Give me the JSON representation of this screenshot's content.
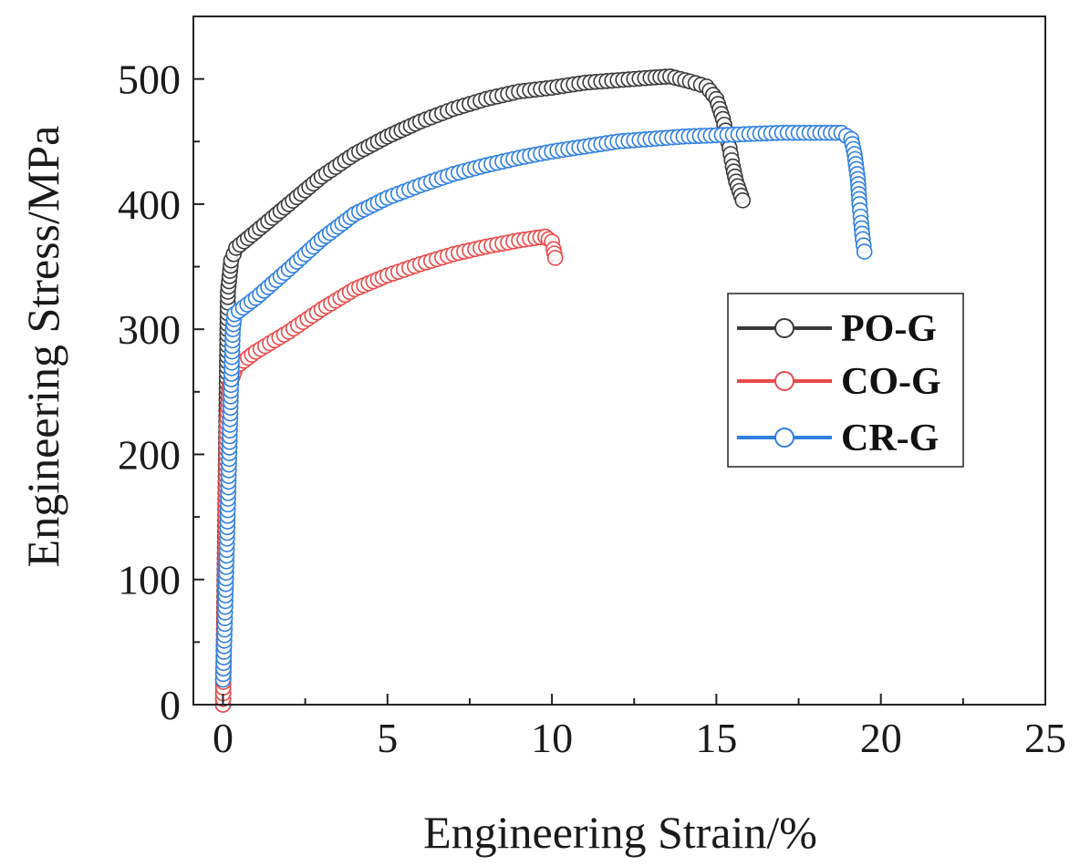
{
  "chart_data": {
    "type": "scatter",
    "xlabel": "Engineering Strain/%",
    "ylabel": "Engineering Stress/MPa",
    "xlim": [
      -0.9,
      25
    ],
    "ylim": [
      0,
      550
    ],
    "x_ticks": [
      0,
      5,
      10,
      15,
      20,
      25
    ],
    "x_tick_labels": [
      "0",
      "5",
      "10",
      "15",
      "20",
      "25"
    ],
    "y_ticks": [
      0,
      100,
      200,
      300,
      400,
      500
    ],
    "y_tick_labels": [
      "0",
      "100",
      "200",
      "300",
      "400",
      "500"
    ],
    "grid": false,
    "legend_position": "right",
    "series": [
      {
        "name": "PO-G",
        "color": "#3a3a3a",
        "points": [
          [
            0,
            0
          ],
          [
            0.03,
            60
          ],
          [
            0.06,
            130
          ],
          [
            0.09,
            200
          ],
          [
            0.12,
            270
          ],
          [
            0.15,
            330
          ],
          [
            0.25,
            355
          ],
          [
            0.4,
            365
          ],
          [
            1,
            378
          ],
          [
            2,
            400
          ],
          [
            3,
            422
          ],
          [
            4,
            440
          ],
          [
            5,
            454
          ],
          [
            6,
            466
          ],
          [
            7,
            476
          ],
          [
            8,
            484
          ],
          [
            9,
            490
          ],
          [
            10,
            493
          ],
          [
            11,
            497
          ],
          [
            12,
            499
          ],
          [
            13,
            501
          ],
          [
            13.6,
            502
          ],
          [
            14.2,
            498
          ],
          [
            14.7,
            494
          ],
          [
            15,
            484
          ],
          [
            15.2,
            468
          ],
          [
            15.4,
            445
          ],
          [
            15.5,
            430
          ],
          [
            15.6,
            418
          ],
          [
            15.8,
            403
          ]
        ]
      },
      {
        "name": "CO-G",
        "color": "#e84a4a",
        "points": [
          [
            0,
            0
          ],
          [
            0.03,
            50
          ],
          [
            0.06,
            110
          ],
          [
            0.09,
            170
          ],
          [
            0.12,
            225
          ],
          [
            0.2,
            255
          ],
          [
            0.4,
            270
          ],
          [
            1,
            282
          ],
          [
            2,
            298
          ],
          [
            3,
            316
          ],
          [
            4,
            332
          ],
          [
            5,
            343
          ],
          [
            6,
            352
          ],
          [
            7,
            360
          ],
          [
            8,
            366
          ],
          [
            9,
            371
          ],
          [
            9.5,
            373
          ],
          [
            9.8,
            374
          ],
          [
            10,
            370
          ],
          [
            10.05,
            364
          ],
          [
            10.1,
            357
          ]
        ]
      },
      {
        "name": "CR-G",
        "color": "#2f7fe0",
        "points": [
          [
            0,
            20
          ],
          [
            0.05,
            60
          ],
          [
            0.1,
            110
          ],
          [
            0.15,
            160
          ],
          [
            0.2,
            210
          ],
          [
            0.25,
            260
          ],
          [
            0.3,
            300
          ],
          [
            0.35,
            312
          ],
          [
            1,
            325
          ],
          [
            2,
            348
          ],
          [
            3,
            372
          ],
          [
            4,
            392
          ],
          [
            5,
            405
          ],
          [
            6,
            415
          ],
          [
            7,
            424
          ],
          [
            8,
            431
          ],
          [
            9,
            437
          ],
          [
            10,
            442
          ],
          [
            11,
            446
          ],
          [
            12,
            450
          ],
          [
            13,
            452
          ],
          [
            14,
            454
          ],
          [
            15,
            455
          ],
          [
            16,
            456
          ],
          [
            17,
            457
          ],
          [
            18,
            457
          ],
          [
            18.8,
            457
          ],
          [
            19.1,
            452
          ],
          [
            19.2,
            440
          ],
          [
            19.3,
            420
          ],
          [
            19.35,
            400
          ],
          [
            19.4,
            385
          ],
          [
            19.45,
            372
          ],
          [
            19.5,
            362
          ]
        ]
      }
    ]
  },
  "legend": {
    "items": [
      {
        "label": "PO-G",
        "color": "#3a3a3a"
      },
      {
        "label": "CO-G",
        "color": "#e84a4a"
      },
      {
        "label": "CR-G",
        "color": "#2f7fe0"
      }
    ]
  }
}
